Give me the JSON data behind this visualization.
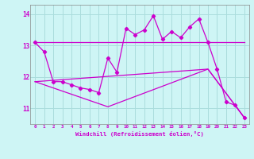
{
  "xlabel": "Windchill (Refroidissement éolien,°C)",
  "bg_color": "#cef5f5",
  "line_color": "#cc00cc",
  "grid_color": "#aadddd",
  "xlim": [
    -0.5,
    23.5
  ],
  "ylim": [
    10.5,
    14.3
  ],
  "yticks": [
    11,
    12,
    13,
    14
  ],
  "xticks": [
    0,
    1,
    2,
    3,
    4,
    5,
    6,
    7,
    8,
    9,
    10,
    11,
    12,
    13,
    14,
    15,
    16,
    17,
    18,
    19,
    20,
    21,
    22,
    23
  ],
  "series": {
    "line1": {
      "x": [
        0,
        1,
        2,
        3,
        4,
        5,
        6,
        7,
        8,
        9,
        10,
        11,
        12,
        13,
        14,
        15,
        16,
        17,
        18,
        19,
        20,
        21,
        22,
        23
      ],
      "y": [
        13.1,
        12.8,
        11.85,
        11.85,
        11.75,
        11.65,
        11.6,
        11.5,
        12.6,
        12.15,
        13.55,
        13.35,
        13.5,
        13.95,
        13.2,
        13.45,
        13.25,
        13.6,
        13.85,
        13.1,
        12.25,
        11.2,
        11.1,
        10.7
      ]
    },
    "upper": {
      "x": [
        0,
        19,
        23
      ],
      "y": [
        13.1,
        13.1,
        13.1
      ]
    },
    "lower1": {
      "x": [
        0,
        19,
        23
      ],
      "y": [
        11.85,
        12.25,
        10.7
      ]
    },
    "lower2": {
      "x": [
        0,
        8,
        19,
        23
      ],
      "y": [
        11.85,
        11.05,
        12.25,
        10.7
      ]
    }
  }
}
